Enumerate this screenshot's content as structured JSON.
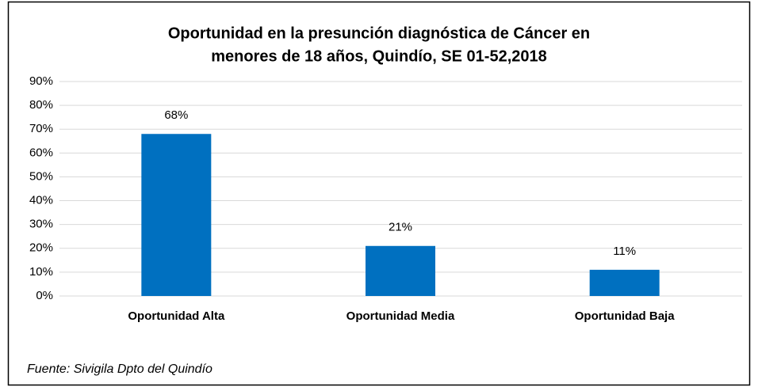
{
  "chart_data": {
    "type": "bar",
    "title": [
      "Oportunidad en la presunción diagnóstica de Cáncer en",
      "menores de 18 años, Quindío, SE 01-52,2018"
    ],
    "categories": [
      "Oportunidad Alta",
      "Oportunidad Media",
      "Oportunidad Baja"
    ],
    "values": [
      68,
      21,
      11
    ],
    "value_labels": [
      "68%",
      "21%",
      "11%"
    ],
    "color": "#0070c0",
    "ylim": [
      0,
      90
    ],
    "yticks": [
      {
        "value": 0,
        "label": "0%"
      },
      {
        "value": 10,
        "label": "10%"
      },
      {
        "value": 20,
        "label": "20%"
      },
      {
        "value": 30,
        "label": "30%"
      },
      {
        "value": 40,
        "label": "40%"
      },
      {
        "value": 50,
        "label": "50%"
      },
      {
        "value": 60,
        "label": "60%"
      },
      {
        "value": 70,
        "label": "70%"
      },
      {
        "value": 80,
        "label": "80%"
      },
      {
        "value": 90,
        "label": "90%"
      }
    ],
    "grid": true,
    "source": "Fuente: Sivigila Dpto del Quindío"
  }
}
